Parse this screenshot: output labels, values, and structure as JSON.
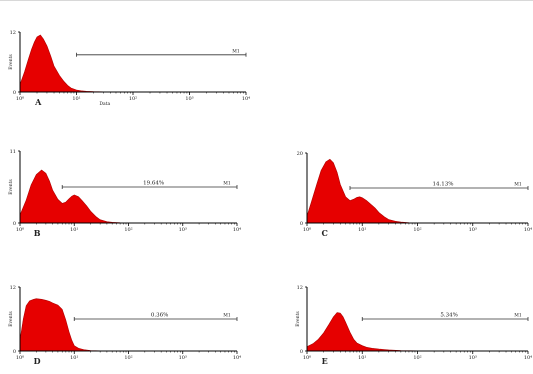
{
  "chart_data": [
    {
      "type": "area",
      "panel_label": "A",
      "xlabel": "Data",
      "ylabel": "Events",
      "xscale": "log",
      "xlim": [
        1,
        10000
      ],
      "ylim": [
        0,
        12
      ],
      "y_ticks": [
        "0",
        "12"
      ],
      "x_ticks": [
        "10⁰",
        "10¹",
        "10²",
        "10³",
        "10⁴"
      ],
      "gate": {
        "label": "",
        "marker": "M1",
        "x_start": 10,
        "x_end": 10000
      },
      "histogram": {
        "x": [
          1,
          1.2,
          1.4,
          1.6,
          1.8,
          2,
          2.3,
          2.6,
          3,
          3.5,
          4,
          5,
          6,
          7,
          8,
          10,
          12,
          15,
          20,
          30,
          50,
          100
        ],
        "y": [
          1.5,
          4,
          6.5,
          8.5,
          10,
          11,
          11.4,
          10.6,
          9.2,
          7.2,
          5.2,
          3.3,
          2.1,
          1.3,
          0.8,
          0.4,
          0.25,
          0.15,
          0.08,
          0.04,
          0.02,
          0
        ]
      }
    },
    {
      "type": "area",
      "panel_label": "B",
      "xlabel": "",
      "ylabel": "Events",
      "xscale": "log",
      "xlim": [
        1,
        10000
      ],
      "ylim": [
        0,
        11
      ],
      "y_ticks": [
        "0",
        "11"
      ],
      "x_ticks": [
        "10⁰",
        "10¹",
        "10²",
        "10³",
        "10⁴"
      ],
      "gate": {
        "label": "19.64%",
        "marker": "M1",
        "x_start": 6,
        "x_end": 10000
      },
      "histogram": {
        "x": [
          1,
          1.3,
          1.6,
          2,
          2.5,
          3,
          3.5,
          4,
          5,
          6,
          7,
          8,
          9,
          10,
          12,
          14,
          17,
          20,
          25,
          30,
          40,
          50,
          70,
          100,
          200
        ],
        "y": [
          1.2,
          3.5,
          5.8,
          7.4,
          8.1,
          7.6,
          6.4,
          5,
          3.6,
          3,
          3.2,
          3.7,
          4.1,
          4.3,
          4,
          3.4,
          2.6,
          1.8,
          1,
          0.5,
          0.2,
          0.1,
          0.05,
          0.02,
          0
        ]
      }
    },
    {
      "type": "area",
      "panel_label": "C",
      "xlabel": "",
      "ylabel": "",
      "xscale": "log",
      "xlim": [
        1,
        10000
      ],
      "ylim": [
        0,
        20
      ],
      "y_ticks": [
        "0",
        "20"
      ],
      "x_ticks": [
        "10⁰",
        "10¹",
        "10²",
        "10³",
        "10⁴"
      ],
      "gate": {
        "label": "14.13%",
        "marker": "M1",
        "x_start": 6,
        "x_end": 10000
      },
      "histogram": {
        "x": [
          1,
          1.2,
          1.5,
          1.8,
          2.2,
          2.6,
          3,
          3.5,
          4,
          5,
          6,
          7,
          8,
          9,
          10,
          12,
          14,
          17,
          20,
          25,
          30,
          40,
          50,
          70,
          100,
          150
        ],
        "y": [
          2,
          6,
          11,
          15,
          17.5,
          18.2,
          17.2,
          14.5,
          11,
          7.5,
          6.4,
          6.8,
          7.3,
          7.5,
          7.2,
          6.4,
          5.5,
          4.3,
          3,
          1.8,
          1,
          0.5,
          0.25,
          0.1,
          0.03,
          0
        ]
      }
    },
    {
      "type": "area",
      "panel_label": "D",
      "xlabel": "",
      "ylabel": "Events",
      "xscale": "log",
      "xlim": [
        1,
        10000
      ],
      "ylim": [
        0,
        12
      ],
      "y_ticks": [
        "0",
        "12"
      ],
      "x_ticks": [
        "10⁰",
        "10¹",
        "10²",
        "10³",
        "10⁴"
      ],
      "gate": {
        "label": "0.36%",
        "marker": "M1",
        "x_start": 10,
        "x_end": 10000
      },
      "histogram": {
        "x": [
          1,
          1.15,
          1.3,
          1.5,
          1.8,
          2,
          2.5,
          3,
          3.5,
          4,
          5,
          6,
          7,
          8,
          9,
          10,
          12,
          15,
          20,
          30,
          50
        ],
        "y": [
          2,
          6,
          8.5,
          9.4,
          9.7,
          9.8,
          9.7,
          9.5,
          9.3,
          9,
          8.6,
          7.8,
          5.8,
          3.6,
          2,
          1,
          0.5,
          0.25,
          0.1,
          0.03,
          0
        ]
      }
    },
    {
      "type": "area",
      "panel_label": "E",
      "xlabel": "",
      "ylabel": "Events",
      "xscale": "log",
      "xlim": [
        1,
        10000
      ],
      "ylim": [
        0,
        12
      ],
      "y_ticks": [
        "0",
        "12"
      ],
      "x_ticks": [
        "10⁰",
        "10¹",
        "10²",
        "10³",
        "10⁴"
      ],
      "gate": {
        "label": "5.34%",
        "marker": "M1",
        "x_start": 10,
        "x_end": 10000
      },
      "histogram": {
        "x": [
          1,
          1.3,
          1.6,
          2,
          2.5,
          3,
          3.5,
          4,
          4.5,
          5,
          6,
          7,
          8,
          10,
          12,
          15,
          20,
          30,
          50,
          100,
          300
        ],
        "y": [
          0.8,
          1.4,
          2.2,
          3.4,
          5,
          6.4,
          7.2,
          7.1,
          6.4,
          5.4,
          3.5,
          2.2,
          1.5,
          1,
          0.7,
          0.5,
          0.35,
          0.2,
          0.1,
          0.03,
          0
        ]
      }
    }
  ],
  "colors": {
    "fill": "#e60000",
    "outline": "#b00000",
    "axis": "#000000",
    "gate": "#333333"
  }
}
